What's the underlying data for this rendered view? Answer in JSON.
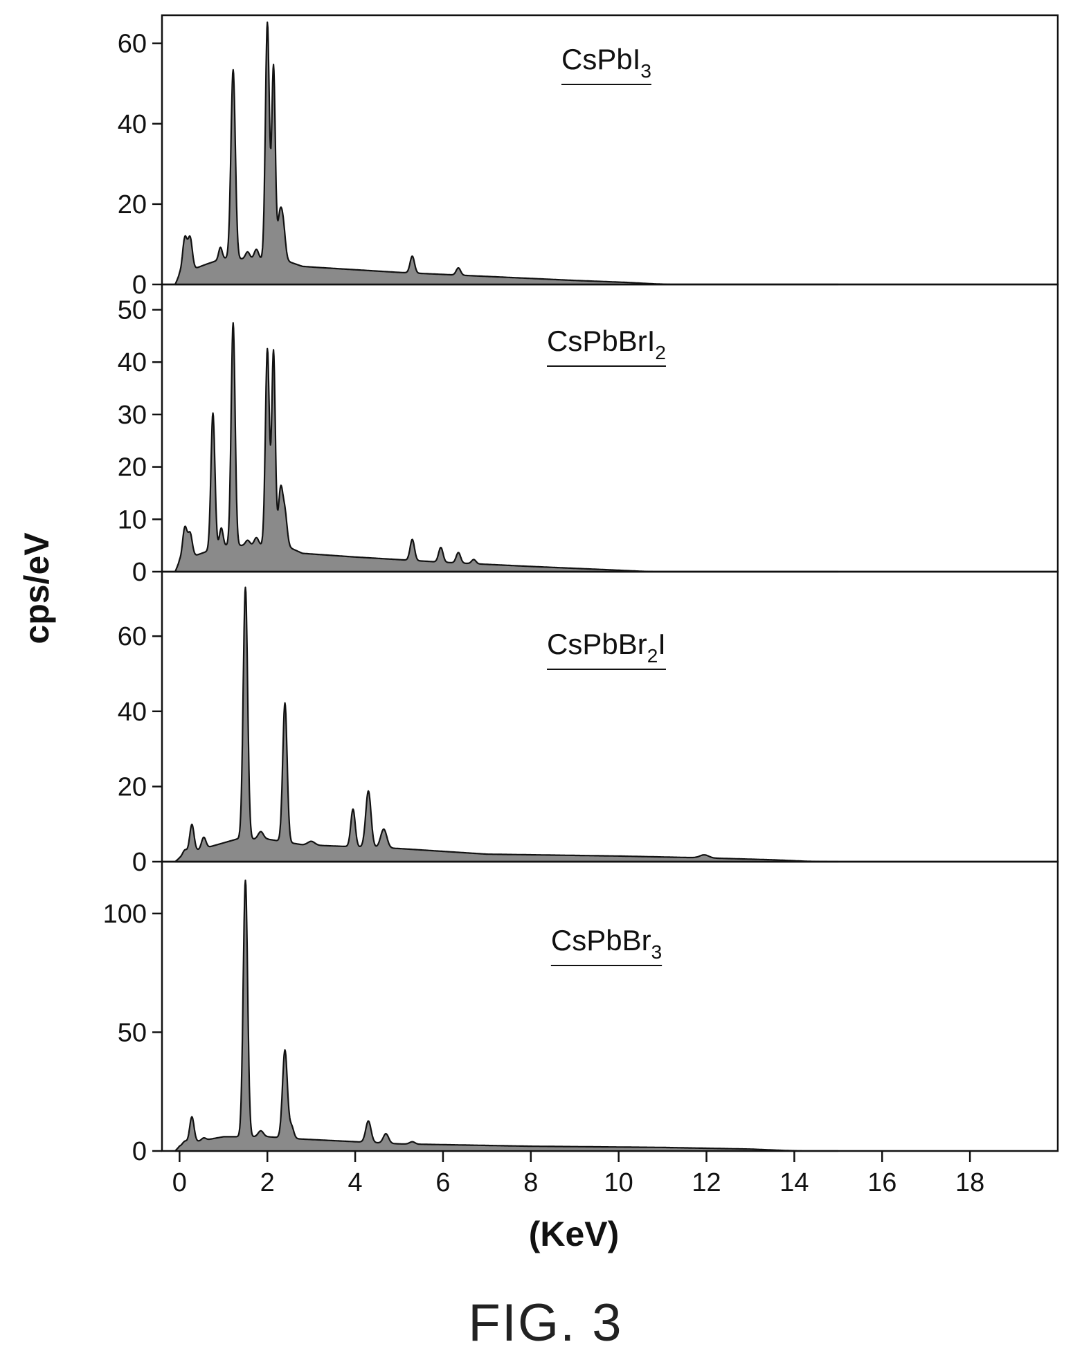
{
  "figure_label": "FIG. 3",
  "chart_data": {
    "type": "area",
    "xlabel": "(KeV)",
    "ylabel": "cps/eV",
    "xlim": [
      -0.4,
      20.0
    ],
    "x_ticks": [
      0,
      2,
      4,
      6,
      8,
      10,
      12,
      14,
      16,
      18
    ],
    "grid": false,
    "legend": "none",
    "fill_color": "#8a8a8a",
    "line_color": "#111111",
    "panels": [
      {
        "name": "CsPbI3",
        "label_main": "CsPbI",
        "label_sub": "3",
        "label_tail": "",
        "ylim": [
          0,
          66
        ],
        "y_ticks": [
          0,
          20,
          40,
          60
        ],
        "baseline": [
          [
            -0.1,
            0
          ],
          [
            0.0,
            2.5
          ],
          [
            0.6,
            5.0
          ],
          [
            1.0,
            6.5
          ],
          [
            2.4,
            6.0
          ],
          [
            2.8,
            4.5
          ],
          [
            3.2,
            4.2
          ],
          [
            5.0,
            3.0
          ],
          [
            7.0,
            2.0
          ],
          [
            9.0,
            1.0
          ],
          [
            10.2,
            0.5
          ],
          [
            10.8,
            0.15
          ],
          [
            11.2,
            0
          ]
        ],
        "peaks": [
          {
            "x": 0.12,
            "h": 8.5,
            "w": 0.05
          },
          {
            "x": 0.24,
            "h": 8.0,
            "w": 0.05
          },
          {
            "x": 0.93,
            "h": 3.0,
            "w": 0.04
          },
          {
            "x": 1.22,
            "h": 47.0,
            "w": 0.05
          },
          {
            "x": 1.55,
            "h": 1.8,
            "w": 0.05
          },
          {
            "x": 1.75,
            "h": 2.5,
            "w": 0.05
          },
          {
            "x": 2.0,
            "h": 59.0,
            "w": 0.045
          },
          {
            "x": 2.14,
            "h": 48.0,
            "w": 0.04
          },
          {
            "x": 2.28,
            "h": 10.0,
            "w": 0.05
          },
          {
            "x": 2.36,
            "h": 8.0,
            "w": 0.05
          },
          {
            "x": 5.3,
            "h": 4.2,
            "w": 0.05
          },
          {
            "x": 6.35,
            "h": 1.8,
            "w": 0.05
          }
        ]
      },
      {
        "name": "CsPbBrI2",
        "label_main": "CsPbBrI",
        "label_sub": "2",
        "label_tail": "",
        "ylim": [
          0,
          54
        ],
        "y_ticks": [
          0,
          10,
          20,
          30,
          40,
          50
        ],
        "baseline": [
          [
            -0.1,
            0
          ],
          [
            0.0,
            2.0
          ],
          [
            0.5,
            3.5
          ],
          [
            1.0,
            5.0
          ],
          [
            2.4,
            5.0
          ],
          [
            2.8,
            3.5
          ],
          [
            4.0,
            2.8
          ],
          [
            6.0,
            1.8
          ],
          [
            8.0,
            1.0
          ],
          [
            9.8,
            0.35
          ],
          [
            10.6,
            0.05
          ],
          [
            10.8,
            0
          ]
        ],
        "peaks": [
          {
            "x": 0.12,
            "h": 6.0,
            "w": 0.05
          },
          {
            "x": 0.24,
            "h": 4.5,
            "w": 0.05
          },
          {
            "x": 0.76,
            "h": 26.0,
            "w": 0.045
          },
          {
            "x": 0.95,
            "h": 3.5,
            "w": 0.04
          },
          {
            "x": 1.22,
            "h": 42.5,
            "w": 0.045
          },
          {
            "x": 1.55,
            "h": 1.0,
            "w": 0.05
          },
          {
            "x": 1.75,
            "h": 1.5,
            "w": 0.05
          },
          {
            "x": 2.0,
            "h": 37.5,
            "w": 0.045
          },
          {
            "x": 2.14,
            "h": 37.0,
            "w": 0.04
          },
          {
            "x": 2.3,
            "h": 10.5,
            "w": 0.05
          },
          {
            "x": 2.4,
            "h": 6.0,
            "w": 0.05
          },
          {
            "x": 5.3,
            "h": 4.0,
            "w": 0.05
          },
          {
            "x": 5.95,
            "h": 2.8,
            "w": 0.05
          },
          {
            "x": 6.35,
            "h": 2.0,
            "w": 0.05
          },
          {
            "x": 6.7,
            "h": 0.8,
            "w": 0.05
          }
        ]
      },
      {
        "name": "CsPbBr2I",
        "label_main": "CsPbBr",
        "label_sub": "2",
        "label_tail": "I",
        "ylim": [
          0,
          76
        ],
        "y_ticks": [
          0,
          20,
          40,
          60
        ],
        "baseline": [
          [
            -0.1,
            0
          ],
          [
            0.0,
            1.0
          ],
          [
            0.4,
            3.0
          ],
          [
            1.0,
            5.0
          ],
          [
            1.3,
            6.0
          ],
          [
            2.0,
            6.0
          ],
          [
            2.8,
            4.5
          ],
          [
            5.0,
            3.5
          ],
          [
            7.0,
            2.0
          ],
          [
            10.0,
            1.5
          ],
          [
            12.0,
            1.0
          ],
          [
            13.5,
            0.5
          ],
          [
            14.3,
            0.1
          ],
          [
            14.8,
            0
          ]
        ],
        "peaks": [
          {
            "x": 0.12,
            "h": 1.5,
            "w": 0.05
          },
          {
            "x": 0.28,
            "h": 7.5,
            "w": 0.05
          },
          {
            "x": 0.55,
            "h": 3.0,
            "w": 0.05
          },
          {
            "x": 1.5,
            "h": 67.0,
            "w": 0.05
          },
          {
            "x": 1.85,
            "h": 2.0,
            "w": 0.06
          },
          {
            "x": 2.4,
            "h": 37.0,
            "w": 0.05
          },
          {
            "x": 3.0,
            "h": 1.0,
            "w": 0.08
          },
          {
            "x": 3.95,
            "h": 10.0,
            "w": 0.05
          },
          {
            "x": 4.3,
            "h": 15.0,
            "w": 0.06
          },
          {
            "x": 4.65,
            "h": 5.0,
            "w": 0.07
          },
          {
            "x": 11.95,
            "h": 0.8,
            "w": 0.1
          }
        ]
      },
      {
        "name": "CsPbBr3",
        "label_main": "CsPbBr",
        "label_sub": "3",
        "label_tail": "",
        "ylim": [
          0,
          120
        ],
        "y_ticks": [
          0,
          50,
          100
        ],
        "baseline": [
          [
            -0.1,
            0
          ],
          [
            0.0,
            2.0
          ],
          [
            0.4,
            4.0
          ],
          [
            1.0,
            6.0
          ],
          [
            2.0,
            6.0
          ],
          [
            2.8,
            5.0
          ],
          [
            5.0,
            3.0
          ],
          [
            8.0,
            2.0
          ],
          [
            11.0,
            1.5
          ],
          [
            13.0,
            0.8
          ],
          [
            13.8,
            0.2
          ],
          [
            14.2,
            0
          ]
        ],
        "peaks": [
          {
            "x": 0.12,
            "h": 1.5,
            "w": 0.05
          },
          {
            "x": 0.28,
            "h": 11.0,
            "w": 0.05
          },
          {
            "x": 0.55,
            "h": 1.0,
            "w": 0.05
          },
          {
            "x": 1.5,
            "h": 108.0,
            "w": 0.05
          },
          {
            "x": 1.85,
            "h": 2.5,
            "w": 0.06
          },
          {
            "x": 2.4,
            "h": 37.0,
            "w": 0.055
          },
          {
            "x": 2.55,
            "h": 5.0,
            "w": 0.05
          },
          {
            "x": 4.3,
            "h": 9.0,
            "w": 0.06
          },
          {
            "x": 4.7,
            "h": 4.0,
            "w": 0.06
          },
          {
            "x": 5.3,
            "h": 1.0,
            "w": 0.06
          }
        ]
      }
    ]
  }
}
